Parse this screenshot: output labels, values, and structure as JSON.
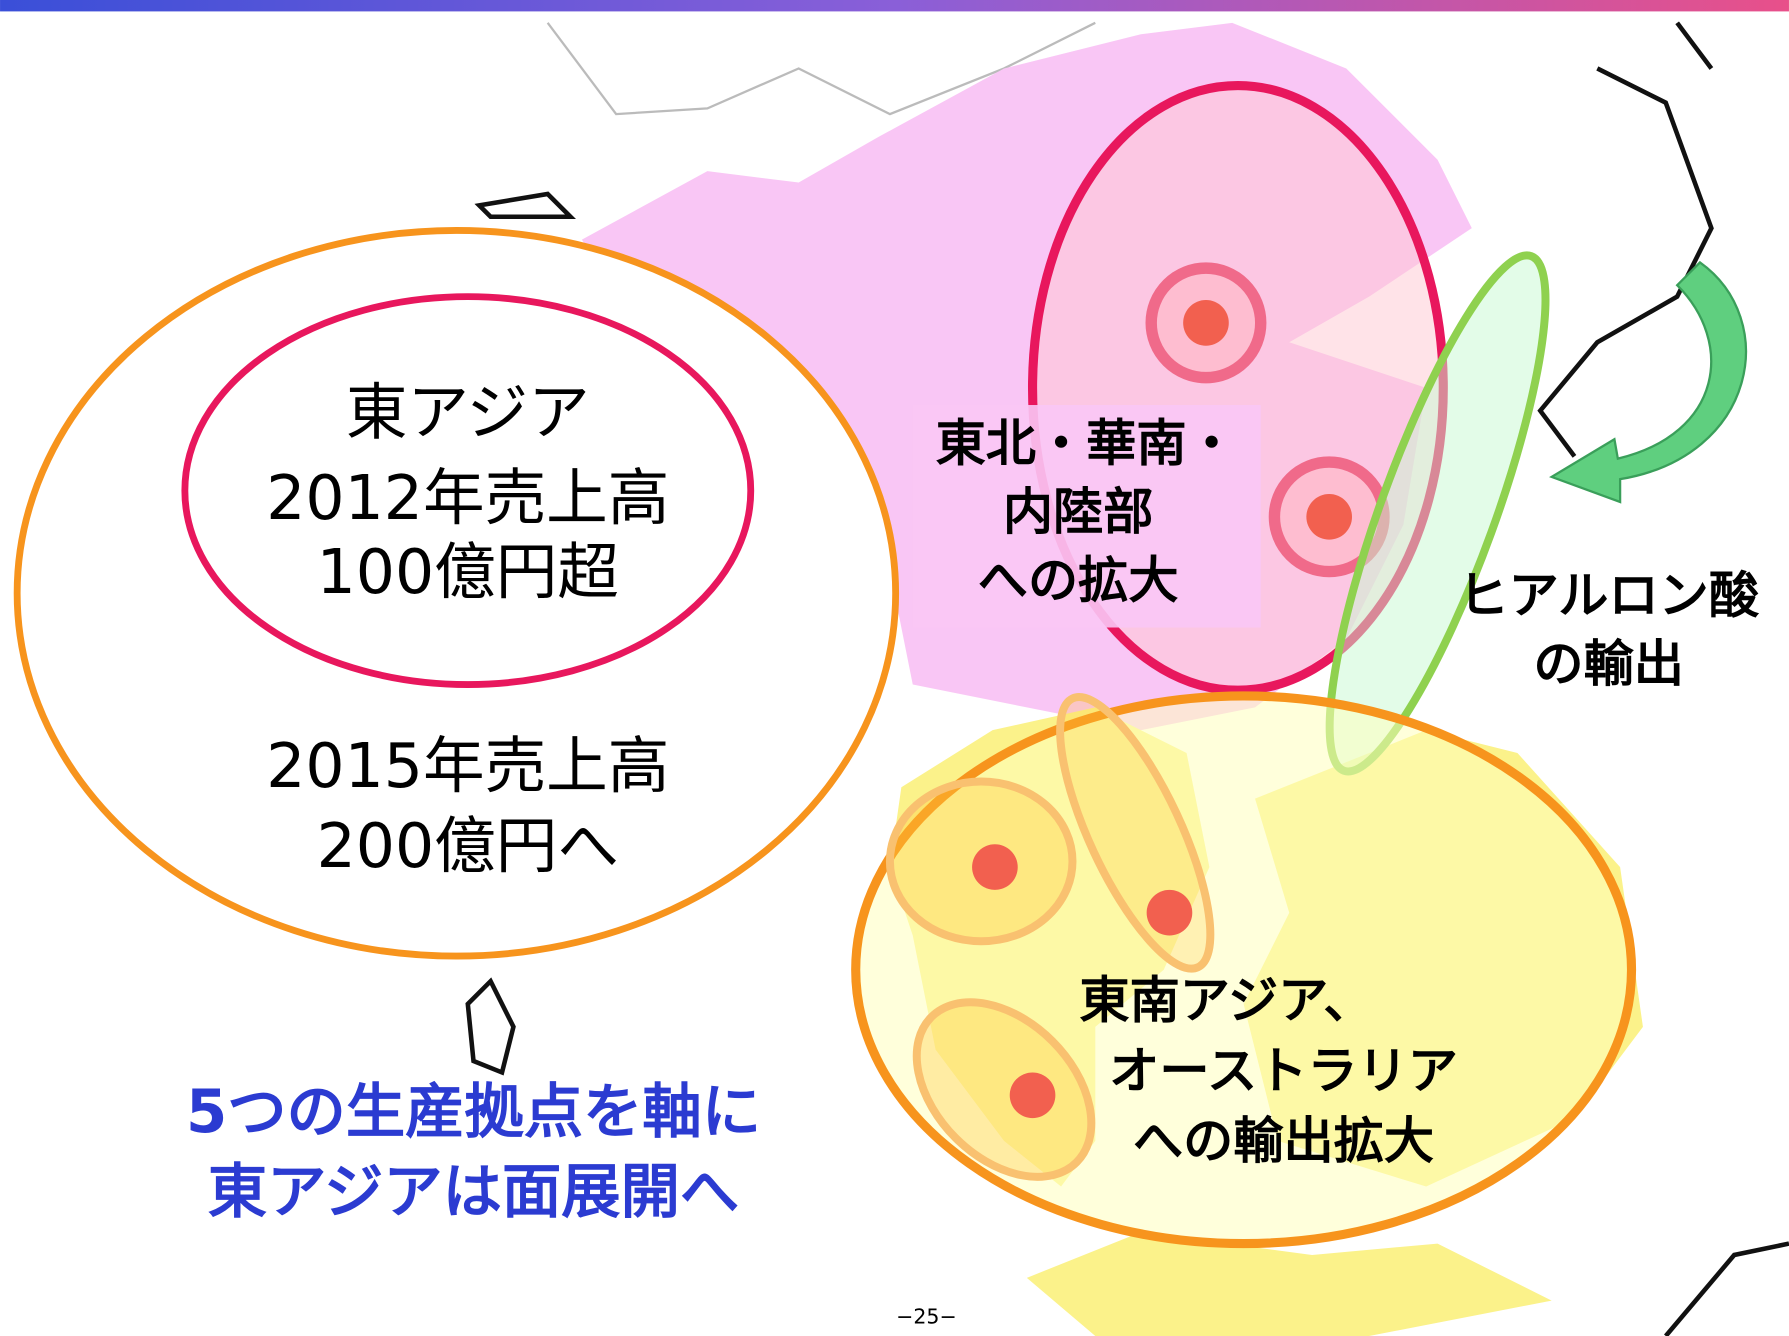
{
  "summary": {
    "lines": [
      "東アジア",
      "2012年売上高",
      "100億円超",
      "2015年売上高",
      "200億円へ"
    ]
  },
  "labels": {
    "china": [
      "東北・華南・",
      "内陸部",
      "への拡大"
    ],
    "export": [
      "ヒアルロン酸",
      "の輸出"
    ],
    "southeast": [
      "東南アジア、",
      "オーストラリア",
      "への輸出拡大"
    ]
  },
  "headline": [
    "5つの生産拠点を軸に",
    "東アジアは面展開へ"
  ],
  "page_number": "−25−"
}
